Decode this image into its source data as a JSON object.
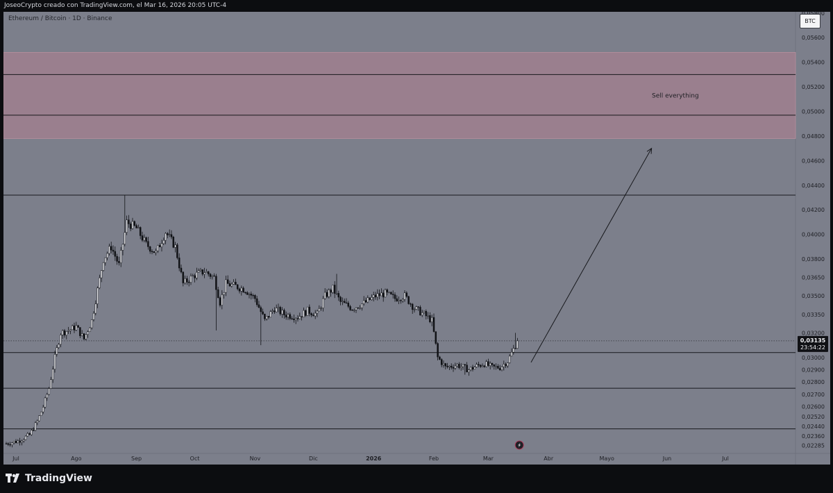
{
  "header": {
    "caption": "JoseoCrypto creado con TradingView.com, el Mar 16, 2026 20:05 UTC-4"
  },
  "chart_data": {
    "type": "candlestick",
    "title": "Ethereum / Bitcoin · 1D · Binance",
    "currency": "BTC",
    "y_range": [
      0.0222,
      0.0581
    ],
    "y_ticks": [
      {
        "v": 0.058,
        "label": "0,05800"
      },
      {
        "v": 0.056,
        "label": "0,05600"
      },
      {
        "v": 0.054,
        "label": "0,05400"
      },
      {
        "v": 0.052,
        "label": "0,05200"
      },
      {
        "v": 0.05,
        "label": "0,05000"
      },
      {
        "v": 0.048,
        "label": "0,04800"
      },
      {
        "v": 0.046,
        "label": "0,04600"
      },
      {
        "v": 0.044,
        "label": "0,04400"
      },
      {
        "v": 0.042,
        "label": "0,04200"
      },
      {
        "v": 0.04,
        "label": "0,04000"
      },
      {
        "v": 0.038,
        "label": "0,03800"
      },
      {
        "v": 0.0365,
        "label": "0,03650"
      },
      {
        "v": 0.035,
        "label": "0,03500"
      },
      {
        "v": 0.0335,
        "label": "0,03350"
      },
      {
        "v": 0.032,
        "label": "0,03200"
      },
      {
        "v": 0.03,
        "label": "0,03000"
      },
      {
        "v": 0.029,
        "label": "0,02900"
      },
      {
        "v": 0.028,
        "label": "0,02800"
      },
      {
        "v": 0.027,
        "label": "0,02700"
      },
      {
        "v": 0.026,
        "label": "0,02600"
      },
      {
        "v": 0.0252,
        "label": "0,02520"
      },
      {
        "v": 0.0244,
        "label": "0,02440"
      },
      {
        "v": 0.0236,
        "label": "0,02360"
      },
      {
        "v": 0.02285,
        "label": "0,02285"
      }
    ],
    "x_labels": [
      {
        "label": "Jul",
        "bar": 5
      },
      {
        "label": "Ago",
        "bar": 36
      },
      {
        "label": "Sep",
        "bar": 67
      },
      {
        "label": "Oct",
        "bar": 97
      },
      {
        "label": "Nov",
        "bar": 128
      },
      {
        "label": "Dic",
        "bar": 158
      },
      {
        "label": "2026",
        "bar": 189
      },
      {
        "label": "Feb",
        "bar": 220
      },
      {
        "label": "Mar",
        "bar": 248
      },
      {
        "label": "Abr",
        "bar": 279
      },
      {
        "label": "Mayo",
        "bar": 309
      },
      {
        "label": "Jun",
        "bar": 340
      },
      {
        "label": "Jul",
        "bar": 370
      }
    ],
    "bar_count": 400,
    "price_path": [
      [
        0,
        0.023
      ],
      [
        6,
        0.0232
      ],
      [
        12,
        0.0237
      ],
      [
        16,
        0.0248
      ],
      [
        19,
        0.026
      ],
      [
        22,
        0.0275
      ],
      [
        25,
        0.03
      ],
      [
        28,
        0.032
      ],
      [
        32,
        0.0322
      ],
      [
        36,
        0.0325
      ],
      [
        40,
        0.0315
      ],
      [
        44,
        0.033
      ],
      [
        47,
        0.0355
      ],
      [
        50,
        0.038
      ],
      [
        54,
        0.039
      ],
      [
        58,
        0.0375
      ],
      [
        62,
        0.041
      ],
      [
        67,
        0.0405
      ],
      [
        72,
        0.0392
      ],
      [
        77,
        0.0385
      ],
      [
        82,
        0.0402
      ],
      [
        87,
        0.039
      ],
      [
        91,
        0.036
      ],
      [
        97,
        0.0367
      ],
      [
        102,
        0.037
      ],
      [
        107,
        0.0365
      ],
      [
        110,
        0.0345
      ],
      [
        113,
        0.036
      ],
      [
        118,
        0.0358
      ],
      [
        123,
        0.0355
      ],
      [
        128,
        0.0348
      ],
      [
        133,
        0.033
      ],
      [
        138,
        0.034
      ],
      [
        143,
        0.0335
      ],
      [
        150,
        0.0333
      ],
      [
        155,
        0.0338
      ],
      [
        160,
        0.0335
      ],
      [
        164,
        0.035
      ],
      [
        168,
        0.0356
      ],
      [
        172,
        0.0345
      ],
      [
        178,
        0.034
      ],
      [
        185,
        0.0345
      ],
      [
        190,
        0.035
      ],
      [
        195,
        0.0352
      ],
      [
        200,
        0.0348
      ],
      [
        205,
        0.035
      ],
      [
        210,
        0.034
      ],
      [
        215,
        0.0335
      ],
      [
        219,
        0.033
      ],
      [
        222,
        0.03
      ],
      [
        226,
        0.0292
      ],
      [
        232,
        0.0294
      ],
      [
        238,
        0.029
      ],
      [
        242,
        0.0293
      ],
      [
        246,
        0.0295
      ],
      [
        250,
        0.0292
      ],
      [
        254,
        0.0292
      ],
      [
        258,
        0.0297
      ],
      [
        262,
        0.031
      ],
      [
        263,
        0.03135
      ]
    ],
    "wick_spikes": [
      {
        "bar": 61,
        "high": 0.0432
      },
      {
        "bar": 108,
        "low": 0.0322
      },
      {
        "bar": 131,
        "low": 0.031
      },
      {
        "bar": 170,
        "high": 0.0368
      },
      {
        "bar": 236,
        "low": 0.0286
      },
      {
        "bar": 262,
        "high": 0.032
      }
    ],
    "levels": [
      0.0432,
      0.0304,
      0.0275,
      0.0242
    ],
    "sell_zone": {
      "top": 0.0548,
      "bottom": 0.0478,
      "inner_lines": [
        0.053,
        0.0497
      ]
    },
    "annotation_label": "Sell everything",
    "annotation_anchor": {
      "bar": 330,
      "value": 0.0513
    },
    "arrow": {
      "from": {
        "bar": 270,
        "value": 0.0296
      },
      "to": {
        "bar": 332,
        "value": 0.047
      }
    },
    "last_price": {
      "value": 0.03135,
      "label": "0,03135",
      "countdown": "23:54:22"
    },
    "marker_bar": 264
  },
  "footer": {
    "brand": "TradingView"
  }
}
